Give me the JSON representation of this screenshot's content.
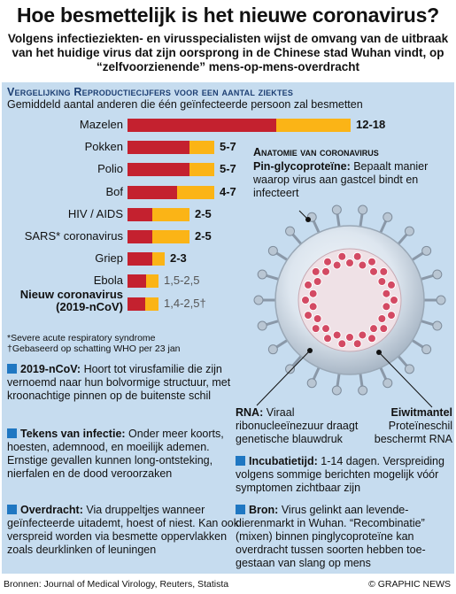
{
  "title": "Hoe besmettelijk is het nieuwe coronavirus?",
  "subtitle": "Volgens infectieziekten- en virusspecialisten wijst de omvang van de uitbraak van het huidige virus dat zijn oorsprong in de Chinese stad Wuhan vindt, op “zelfvoorzienende” mens-op-mens-overdracht",
  "chart_data": {
    "type": "bar",
    "title": "Vergelijking Reproductiecijfers voor een aantal ziektes",
    "subtitle": "Gemiddeld aantal anderen die één geïnfecteerde persoon zal besmetten",
    "categories": [
      "Mazelen",
      "Pokken",
      "Polio",
      "Bof",
      "HIV / AIDS",
      "SARS* coronavirus",
      "Griep",
      "Ebola",
      "Nieuw coronavirus (2019-nCoV)"
    ],
    "labels": [
      "12-18",
      "5-7",
      "5-7",
      "4-7",
      "2-5",
      "2-5",
      "2-3",
      "1,5-2,5",
      "1,4-2,5†"
    ],
    "series": [
      {
        "values": [
          12,
          5,
          5,
          4,
          2,
          2,
          2,
          1.5,
          1.4
        ]
      },
      {
        "values": [
          18,
          7,
          7,
          7,
          5,
          5,
          3,
          2.5,
          2.5
        ]
      }
    ],
    "colors": {
      "low": "#c4212f",
      "high": "#fbb416"
    }
  },
  "notes": {
    "sars": "*Severe acute respiratory syndrome",
    "who": "†Gebaseerd op schatting WHO per 23 jan"
  },
  "info": {
    "ncov": {
      "key": "2019-nCoV:",
      "text": "Hoort tot virusfamilie die zijn vernoemd naar hun bolvormige structuur, met kroonachtige pinnen op de buitenste schil"
    },
    "tekens": {
      "key": "Tekens van infectie:",
      "text": "Onder meer koorts, hoesten, ademnood, en moeilijk ademen. Ernstige gevallen kunnen long-ontsteking, nierfalen en de dood veroorzaken"
    },
    "overdracht": {
      "key": "Overdracht:",
      "text": "Via druppeltjes wanneer geïnfecteerde uitademt, hoest of niest. Kan ook verspreid worden via besmette oppervlakken zoals deurklinken of leuningen"
    },
    "incubatie": {
      "key": "Incubatietijd:",
      "text": "1-14 dagen. Verspreiding volgens sommige berichten mogelijk vóór symptomen zichtbaar zijn"
    },
    "bron": {
      "key": "Bron:",
      "text": "Virus gelinkt aan levende-dierenmarkt in Wuhan. “Recombinatie” (mixen) binnen pinglycoproteïne kan overdracht tussen soorten hebben toe-gestaan van slang op mens"
    }
  },
  "anatomy": {
    "title": "Anatomie van coronavirus",
    "pin_key": "Pin-glycoproteïne:",
    "pin_text": "Bepaalt manier waarop virus aan gastcel bindt en infecteert",
    "rna_key": "RNA:",
    "rna_text": "Viraal ribonucleeïnezuur draagt genetische blauwdruk",
    "eiwit_key": "Eiwitmantel",
    "eiwit_text": "Proteïneschil beschermt RNA"
  },
  "footer": {
    "sources": "Bronnen: Journal of Medical Virology, Reuters, Statista",
    "credit": "© GRAPHIC NEWS"
  },
  "colors": {
    "accent_blue": "#1f77c2",
    "panel_bg": "#c6dcef",
    "heading_blue": "#1d3f73"
  }
}
